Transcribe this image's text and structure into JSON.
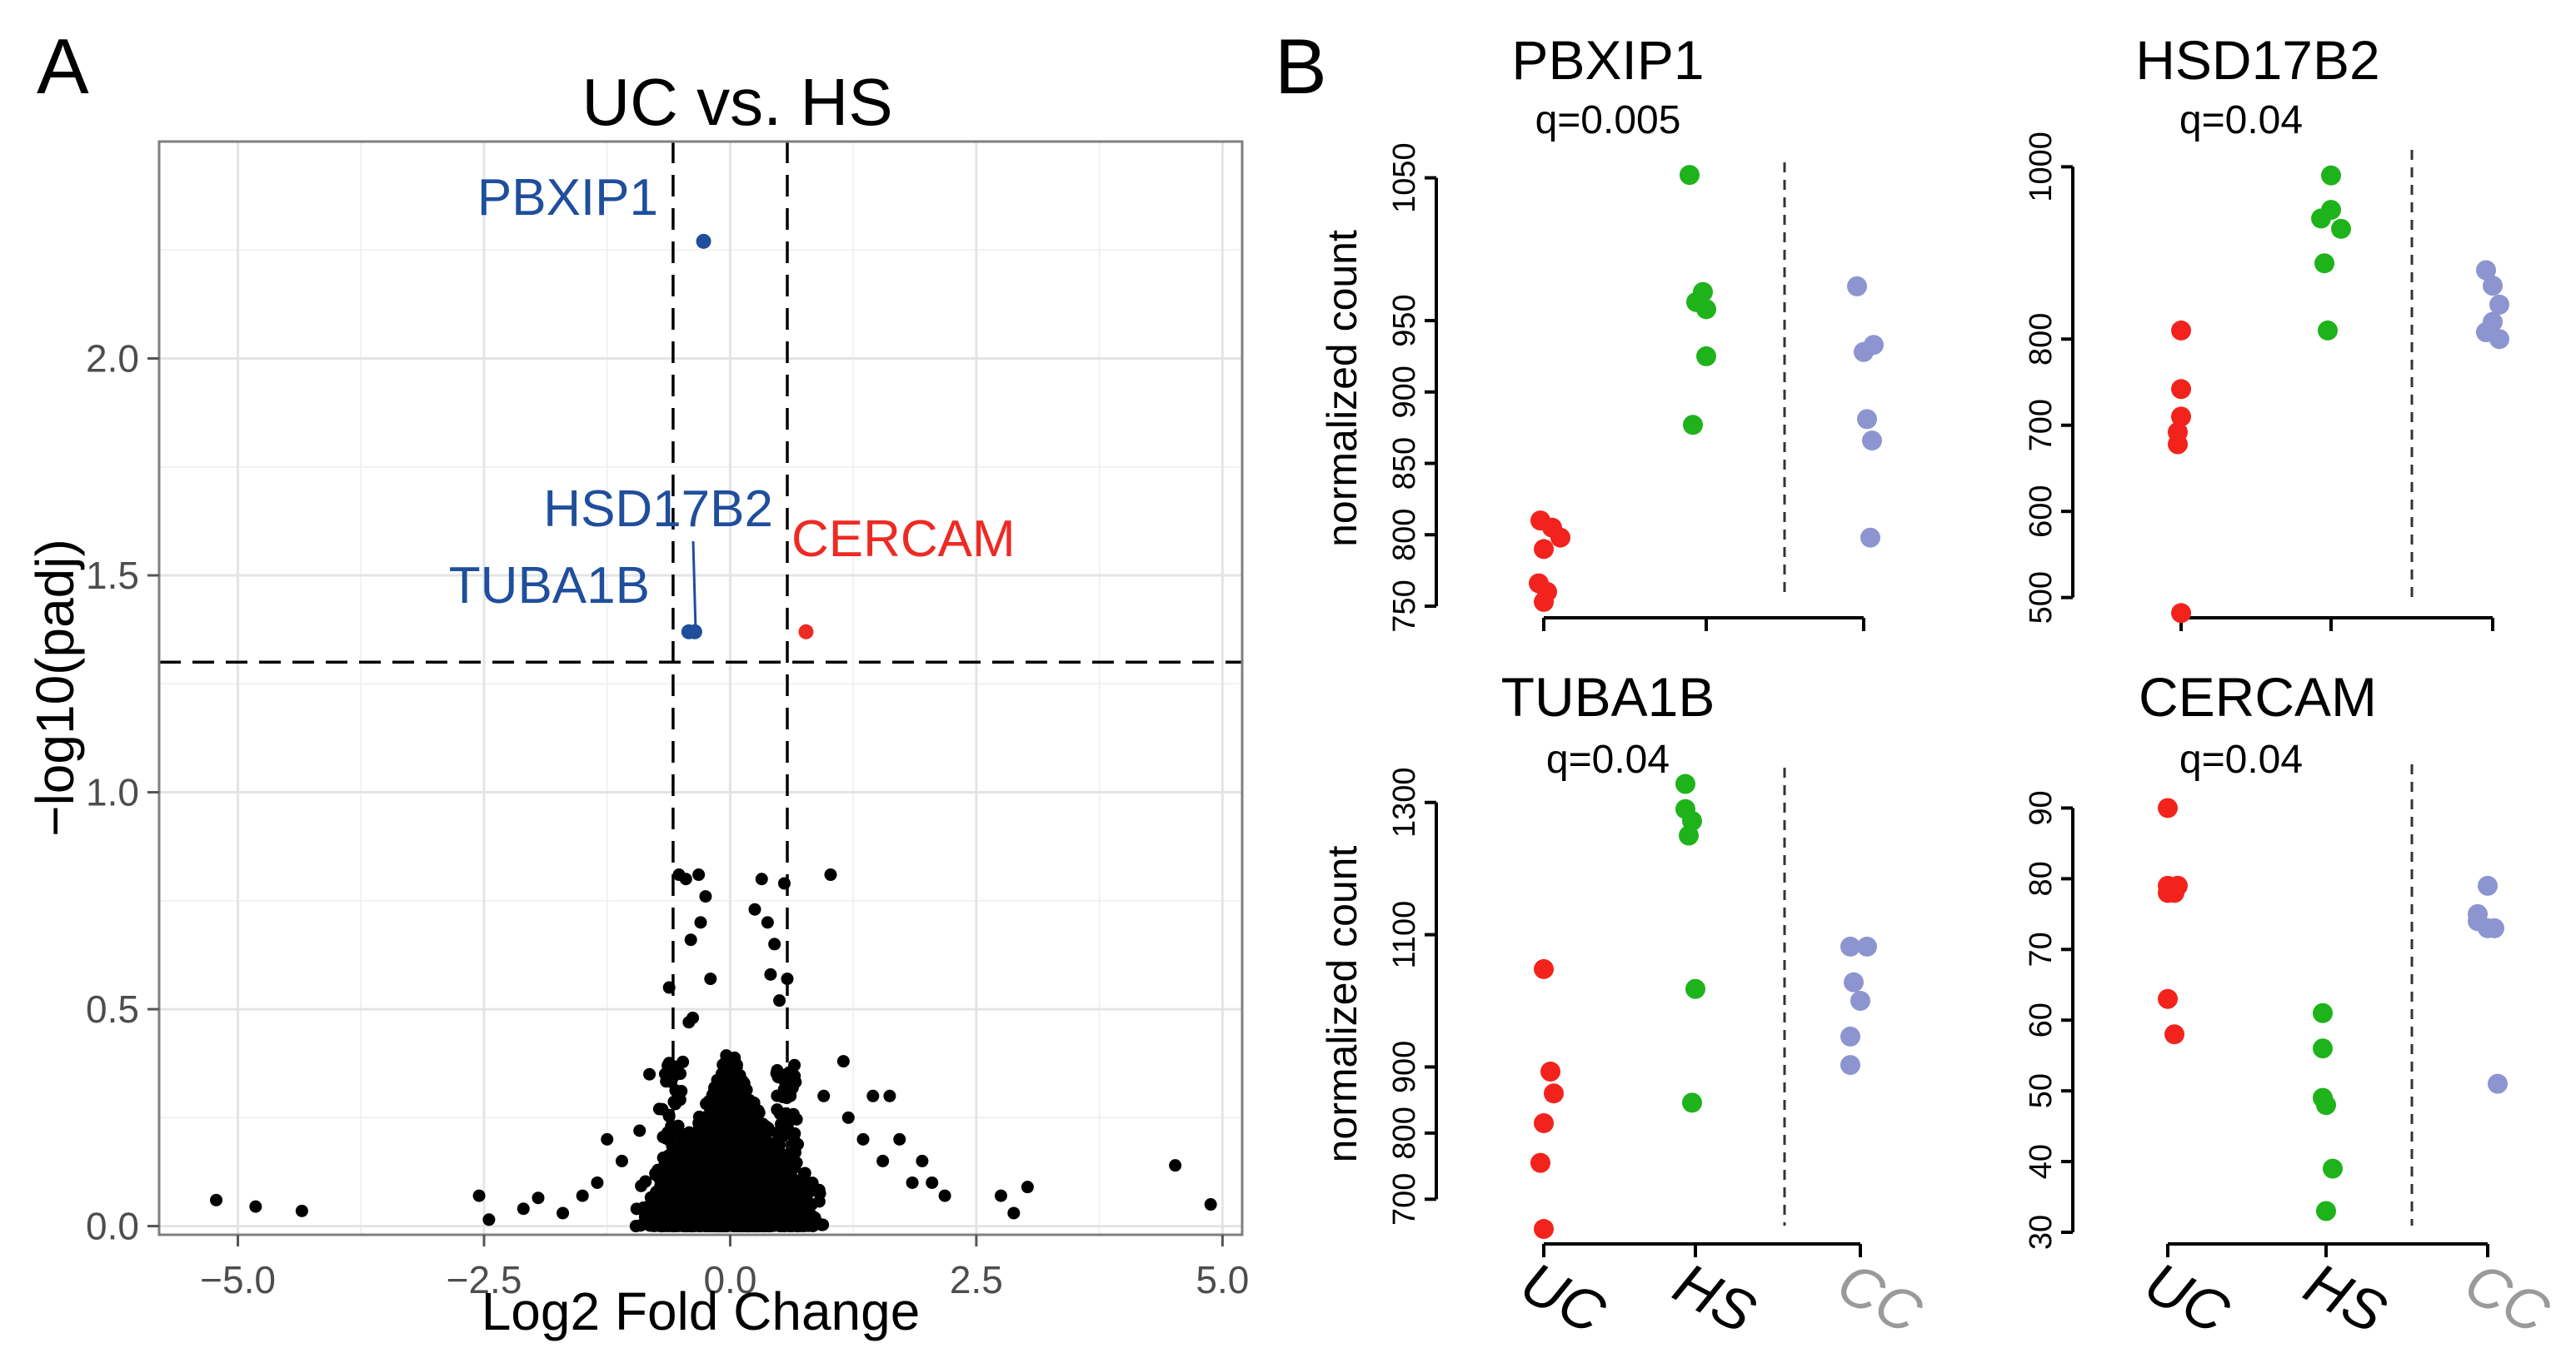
{
  "panel_a": {
    "letter": "A",
    "chart_data": {
      "type": "scatter",
      "title": "UC vs. HS",
      "xlabel": "Log2 Fold Change",
      "ylabel": "−log10(padj)",
      "xlim": [
        -5.8,
        5.2
      ],
      "ylim": [
        -0.02,
        2.5
      ],
      "x_ticks": [
        -5.0,
        -2.5,
        0.0,
        2.5,
        5.0
      ],
      "x_tick_labels": [
        "−5.0",
        "−2.5",
        "0.0",
        "2.5",
        "5.0"
      ],
      "y_ticks": [
        0.0,
        0.5,
        1.0,
        1.5,
        2.0
      ],
      "y_tick_labels": [
        "0.0",
        "0.5",
        "1.0",
        "1.5",
        "2.0"
      ],
      "grid": true,
      "thresholds": {
        "fold_change": [
          -0.58,
          0.58
        ],
        "padj_log10": 1.3
      },
      "colors": {
        "down": "#1f4e9c",
        "up": "#ee2a24",
        "ns": "#000000"
      },
      "highlighted": [
        {
          "name": "PBXIP1",
          "x": -0.27,
          "y": 2.27,
          "dir": "down"
        },
        {
          "name": "HSD17B2",
          "x": -0.42,
          "y": 1.37,
          "dir": "down"
        },
        {
          "name": "TUBA1B",
          "x": -0.36,
          "y": 1.37,
          "dir": "down"
        },
        {
          "name": "CERCAM",
          "x": 0.77,
          "y": 1.37,
          "dir": "up"
        }
      ],
      "background_points": [
        [
          -5.22,
          0.06
        ],
        [
          -4.82,
          0.045
        ],
        [
          -4.35,
          0.035
        ],
        [
          -2.55,
          0.07
        ],
        [
          -2.45,
          0.015
        ],
        [
          -2.1,
          0.04
        ],
        [
          -1.95,
          0.065
        ],
        [
          -1.7,
          0.03
        ],
        [
          -1.5,
          0.07
        ],
        [
          -1.35,
          0.1
        ],
        [
          -1.25,
          0.2
        ],
        [
          -1.1,
          0.15
        ],
        [
          -0.92,
          0.22
        ],
        [
          -0.82,
          0.35
        ],
        [
          -0.72,
          0.27
        ],
        [
          -0.62,
          0.55
        ],
        [
          -0.52,
          0.81
        ],
        [
          -0.45,
          0.8
        ],
        [
          -0.4,
          0.66
        ],
        [
          -0.38,
          0.48
        ],
        [
          -0.32,
          0.81
        ],
        [
          -0.25,
          0.76
        ],
        [
          -0.2,
          0.57
        ],
        [
          -0.42,
          0.47
        ],
        [
          -0.3,
          0.7
        ],
        [
          0.25,
          0.73
        ],
        [
          0.32,
          0.8
        ],
        [
          0.38,
          0.7
        ],
        [
          0.41,
          0.58
        ],
        [
          0.45,
          0.65
        ],
        [
          0.5,
          0.52
        ],
        [
          0.55,
          0.79
        ],
        [
          0.58,
          0.57
        ],
        [
          1.02,
          0.81
        ],
        [
          1.2,
          0.25
        ],
        [
          1.45,
          0.3
        ],
        [
          1.62,
          0.3
        ],
        [
          1.72,
          0.2
        ],
        [
          1.85,
          0.1
        ],
        [
          1.95,
          0.15
        ],
        [
          2.05,
          0.1
        ],
        [
          2.18,
          0.07
        ],
        [
          1.35,
          0.2
        ],
        [
          1.55,
          0.15
        ],
        [
          0.95,
          0.3
        ],
        [
          1.15,
          0.38
        ],
        [
          2.75,
          0.07
        ],
        [
          2.88,
          0.03
        ],
        [
          3.02,
          0.09
        ],
        [
          4.52,
          0.14
        ],
        [
          4.88,
          0.05
        ]
      ]
    }
  },
  "panel_b": {
    "letter": "B",
    "ylabel": "normalized count",
    "x_categories": [
      "UC",
      "HS",
      "CC"
    ],
    "group_colors": {
      "UC": "#f2231d",
      "HS": "#1eb31a",
      "CC": "#8c95cf"
    },
    "x_label_colors": {
      "UC": "#000000",
      "HS": "#000000",
      "CC": "#9a9a9a"
    },
    "chart_data": [
      {
        "type": "scatter",
        "title": "PBXIP1",
        "subtitle": "q=0.005",
        "ylim": [
          750,
          1055
        ],
        "y_ticks": [
          750,
          800,
          850,
          900,
          950,
          1050
        ],
        "y_tick_labels": [
          "750",
          "800",
          "850",
          "900",
          "950",
          "1050"
        ],
        "series": [
          {
            "group": "UC",
            "points": [
              [
                -0.02,
                810
              ],
              [
                0.05,
                805
              ],
              [
                0.1,
                798
              ],
              [
                0.0,
                790
              ],
              [
                -0.03,
                766
              ],
              [
                0.02,
                760
              ],
              [
                0.0,
                753
              ]
            ]
          },
          {
            "group": "HS",
            "points": [
              [
                -0.1,
                1052
              ],
              [
                -0.02,
                970
              ],
              [
                -0.06,
                963
              ],
              [
                0.0,
                958
              ],
              [
                0.0,
                925
              ],
              [
                -0.08,
                877
              ]
            ]
          },
          {
            "group": "CC",
            "points": [
              [
                -0.04,
                974
              ],
              [
                0.0,
                928
              ],
              [
                0.06,
                933
              ],
              [
                0.02,
                881
              ],
              [
                0.05,
                866
              ],
              [
                0.04,
                798
              ]
            ]
          }
        ]
      },
      {
        "type": "scatter",
        "title": "HSD17B2",
        "subtitle": "q=0.04",
        "ylim": [
          490,
          1010
        ],
        "y_ticks": [
          500,
          600,
          700,
          800,
          1000
        ],
        "y_tick_labels": [
          "500",
          "600",
          "700",
          "800",
          "1000"
        ],
        "series": [
          {
            "group": "UC",
            "points": [
              [
                0.0,
                810
              ],
              [
                0.0,
                742
              ],
              [
                0.0,
                710
              ],
              [
                -0.02,
                692
              ],
              [
                -0.02,
                678
              ],
              [
                0.0,
                482
              ]
            ]
          },
          {
            "group": "HS",
            "points": [
              [
                0.0,
                990
              ],
              [
                -0.06,
                940
              ],
              [
                0.0,
                950
              ],
              [
                0.06,
                928
              ],
              [
                -0.04,
                888
              ],
              [
                -0.02,
                810
              ]
            ]
          },
          {
            "group": "CC",
            "points": [
              [
                -0.04,
                880
              ],
              [
                0.0,
                862
              ],
              [
                0.04,
                840
              ],
              [
                0.0,
                820
              ],
              [
                -0.04,
                808
              ],
              [
                0.04,
                800
              ]
            ]
          }
        ]
      },
      {
        "type": "scatter",
        "title": "TUBA1B",
        "subtitle": "q=0.04",
        "ylim": [
          650,
          1340
        ],
        "y_ticks": [
          700,
          800,
          900,
          1100,
          1300
        ],
        "y_tick_labels": [
          "700",
          "800",
          "900",
          "1100",
          "1300"
        ],
        "series": [
          {
            "group": "UC",
            "points": [
              [
                0.0,
                1048
              ],
              [
                0.04,
                893
              ],
              [
                0.06,
                860
              ],
              [
                0.0,
                815
              ],
              [
                -0.02,
                755
              ],
              [
                0.0,
                655
              ]
            ]
          },
          {
            "group": "HS",
            "points": [
              [
                -0.06,
                1328
              ],
              [
                -0.06,
                1290
              ],
              [
                -0.02,
                1272
              ],
              [
                -0.04,
                1250
              ],
              [
                0.0,
                1018
              ],
              [
                -0.02,
                846
              ]
            ]
          },
          {
            "group": "CC",
            "points": [
              [
                -0.06,
                1082
              ],
              [
                0.04,
                1082
              ],
              [
                -0.04,
                1028
              ],
              [
                0.0,
                1000
              ],
              [
                -0.06,
                946
              ],
              [
                -0.06,
                903
              ]
            ]
          }
        ]
      },
      {
        "type": "scatter",
        "title": "CERCAM",
        "subtitle": "q=0.04",
        "ylim": [
          30,
          95
        ],
        "y_ticks": [
          30,
          40,
          50,
          60,
          70,
          80,
          90
        ],
        "y_tick_labels": [
          "30",
          "40",
          "50",
          "60",
          "70",
          "80",
          "90"
        ],
        "series": [
          {
            "group": "UC",
            "points": [
              [
                0.0,
                90
              ],
              [
                0.0,
                79
              ],
              [
                0.0,
                78
              ],
              [
                0.06,
                79
              ],
              [
                0.04,
                78
              ],
              [
                0.0,
                63
              ],
              [
                0.04,
                58
              ]
            ]
          },
          {
            "group": "HS",
            "points": [
              [
                -0.02,
                61
              ],
              [
                -0.02,
                56
              ],
              [
                -0.02,
                49
              ],
              [
                0.0,
                48
              ],
              [
                0.04,
                39
              ],
              [
                0.0,
                33
              ]
            ]
          },
          {
            "group": "CC",
            "points": [
              [
                -0.06,
                75
              ],
              [
                -0.06,
                74
              ],
              [
                0.0,
                73
              ],
              [
                0.04,
                73
              ],
              [
                0.0,
                79
              ],
              [
                0.06,
                51
              ]
            ]
          }
        ]
      }
    ]
  }
}
